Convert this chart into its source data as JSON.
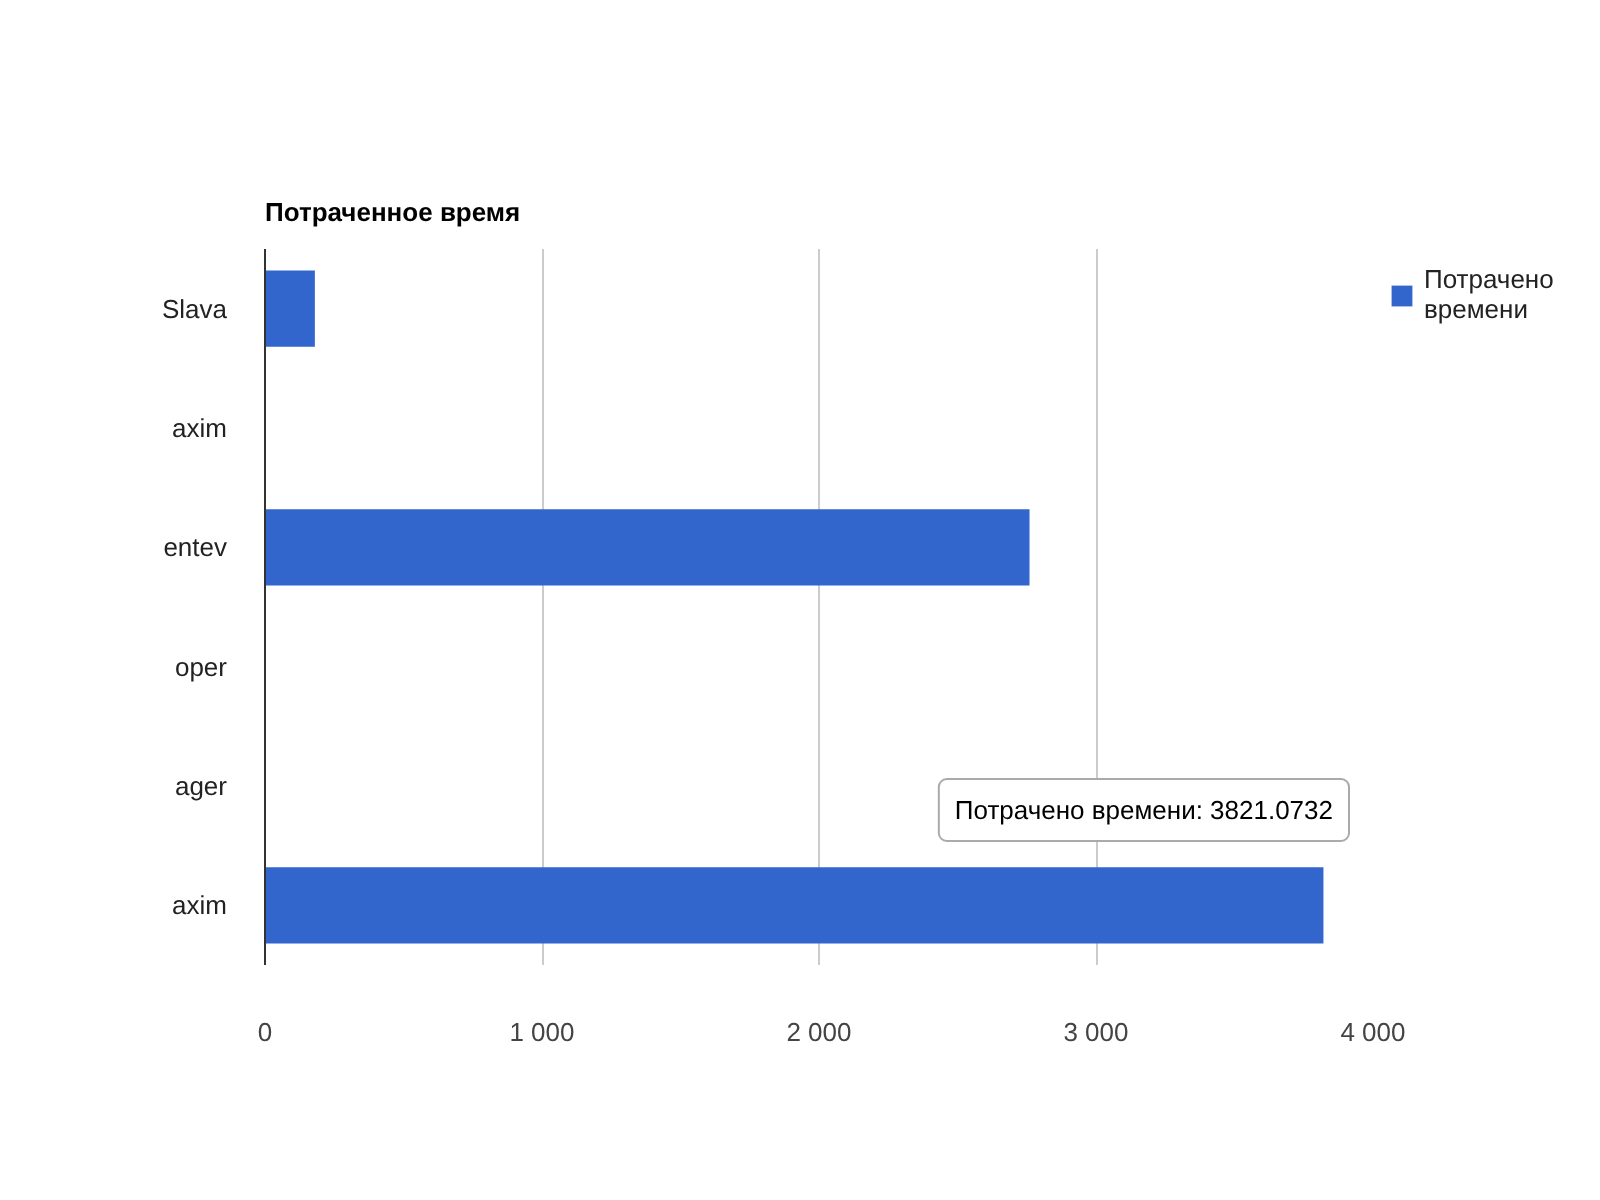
{
  "chart_data": {
    "type": "bar",
    "orientation": "horizontal",
    "title": "Потраченное время",
    "categories": [
      "Slava",
      "axim",
      "entev",
      "oper",
      "ager",
      "axim"
    ],
    "series": [
      {
        "name": "Потрачено времени",
        "color": "#3366cc",
        "values": [
          180,
          0,
          2760,
          0,
          0,
          3821.0732
        ]
      }
    ],
    "xlim": [
      0,
      4000
    ],
    "xticks": [
      0,
      {
        "value": 1000,
        "label": "1 000"
      },
      {
        "value": 2000,
        "label": "2 000"
      },
      {
        "value": 3000,
        "label": "3 000"
      },
      {
        "value": 4000,
        "label": "4 000"
      }
    ],
    "grid": "x",
    "legend": "top right",
    "annotations": [
      "Потрачено времени: 3821.0732"
    ]
  }
}
